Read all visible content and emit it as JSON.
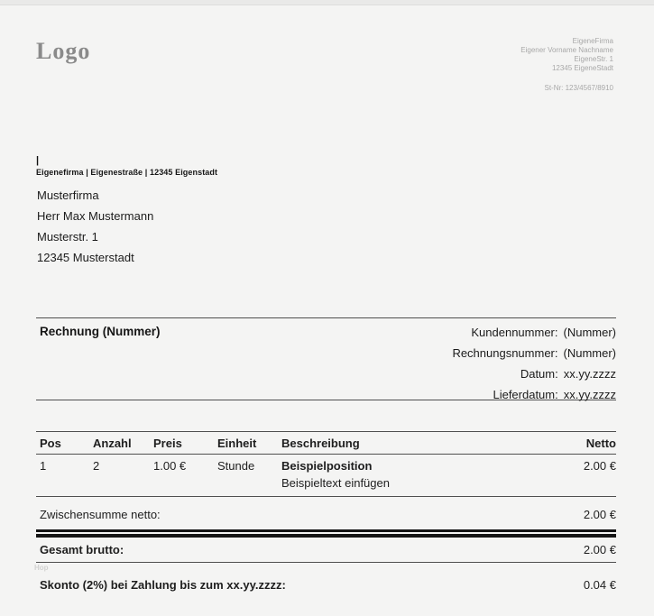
{
  "header": {
    "logo": "Logo",
    "sender_block": {
      "lines": [
        "EigeneFirma",
        "Eigener Vorname Nachname",
        "EigeneStr. 1",
        "12345 EigeneStadt"
      ],
      "tax_id": "St-Nr: 123/4567/8910"
    }
  },
  "address": {
    "cursor_mark": "|",
    "sender_line": "Eigenefirma | Eigenestraße | 12345 Eigenstadt",
    "recipient": [
      "Musterfirma",
      "Herr Max Mustermann",
      "Musterstr. 1",
      "12345 Musterstadt"
    ]
  },
  "invoice_meta": {
    "title": "Rechnung (Nummer)",
    "rows": [
      {
        "label": "Kundennummer:",
        "value": "(Nummer)"
      },
      {
        "label": "Rechnungsnummer:",
        "value": "(Nummer)"
      },
      {
        "label": "Datum:",
        "value": "xx.yy.zzzz"
      },
      {
        "label": "Lieferdatum:",
        "value": "xx.yy.zzzz"
      }
    ]
  },
  "items_table": {
    "columns": [
      "Pos",
      "Anzahl",
      "Preis",
      "Einheit",
      "Beschreibung",
      "Netto"
    ],
    "rows": [
      {
        "pos": "1",
        "anzahl": "2",
        "preis": "1.00 €",
        "einheit": "Stunde",
        "beschreibung_title": "Beispielposition",
        "beschreibung_text": "Beispieltext einfügen",
        "netto": "2.00 €"
      }
    ]
  },
  "totals": {
    "subtotal_label": "Zwischensumme netto:",
    "subtotal_value": "2.00 €",
    "total_label": "Gesamt brutto:",
    "total_value": "2.00 €"
  },
  "footer": {
    "faint_text": "Hop",
    "skonto_label": "Skonto (2%) bei Zahlung bis zum xx.yy.zzzz:",
    "skonto_value": "0.04 €"
  },
  "colors": {
    "page_background": "#f4f4f3",
    "text": "#1b1b1b",
    "muted_gray": "#a8a8a8",
    "logo_gray": "#8a8a8a",
    "thin_rule": "#4f4f4f",
    "thick_rule": "#151515"
  }
}
